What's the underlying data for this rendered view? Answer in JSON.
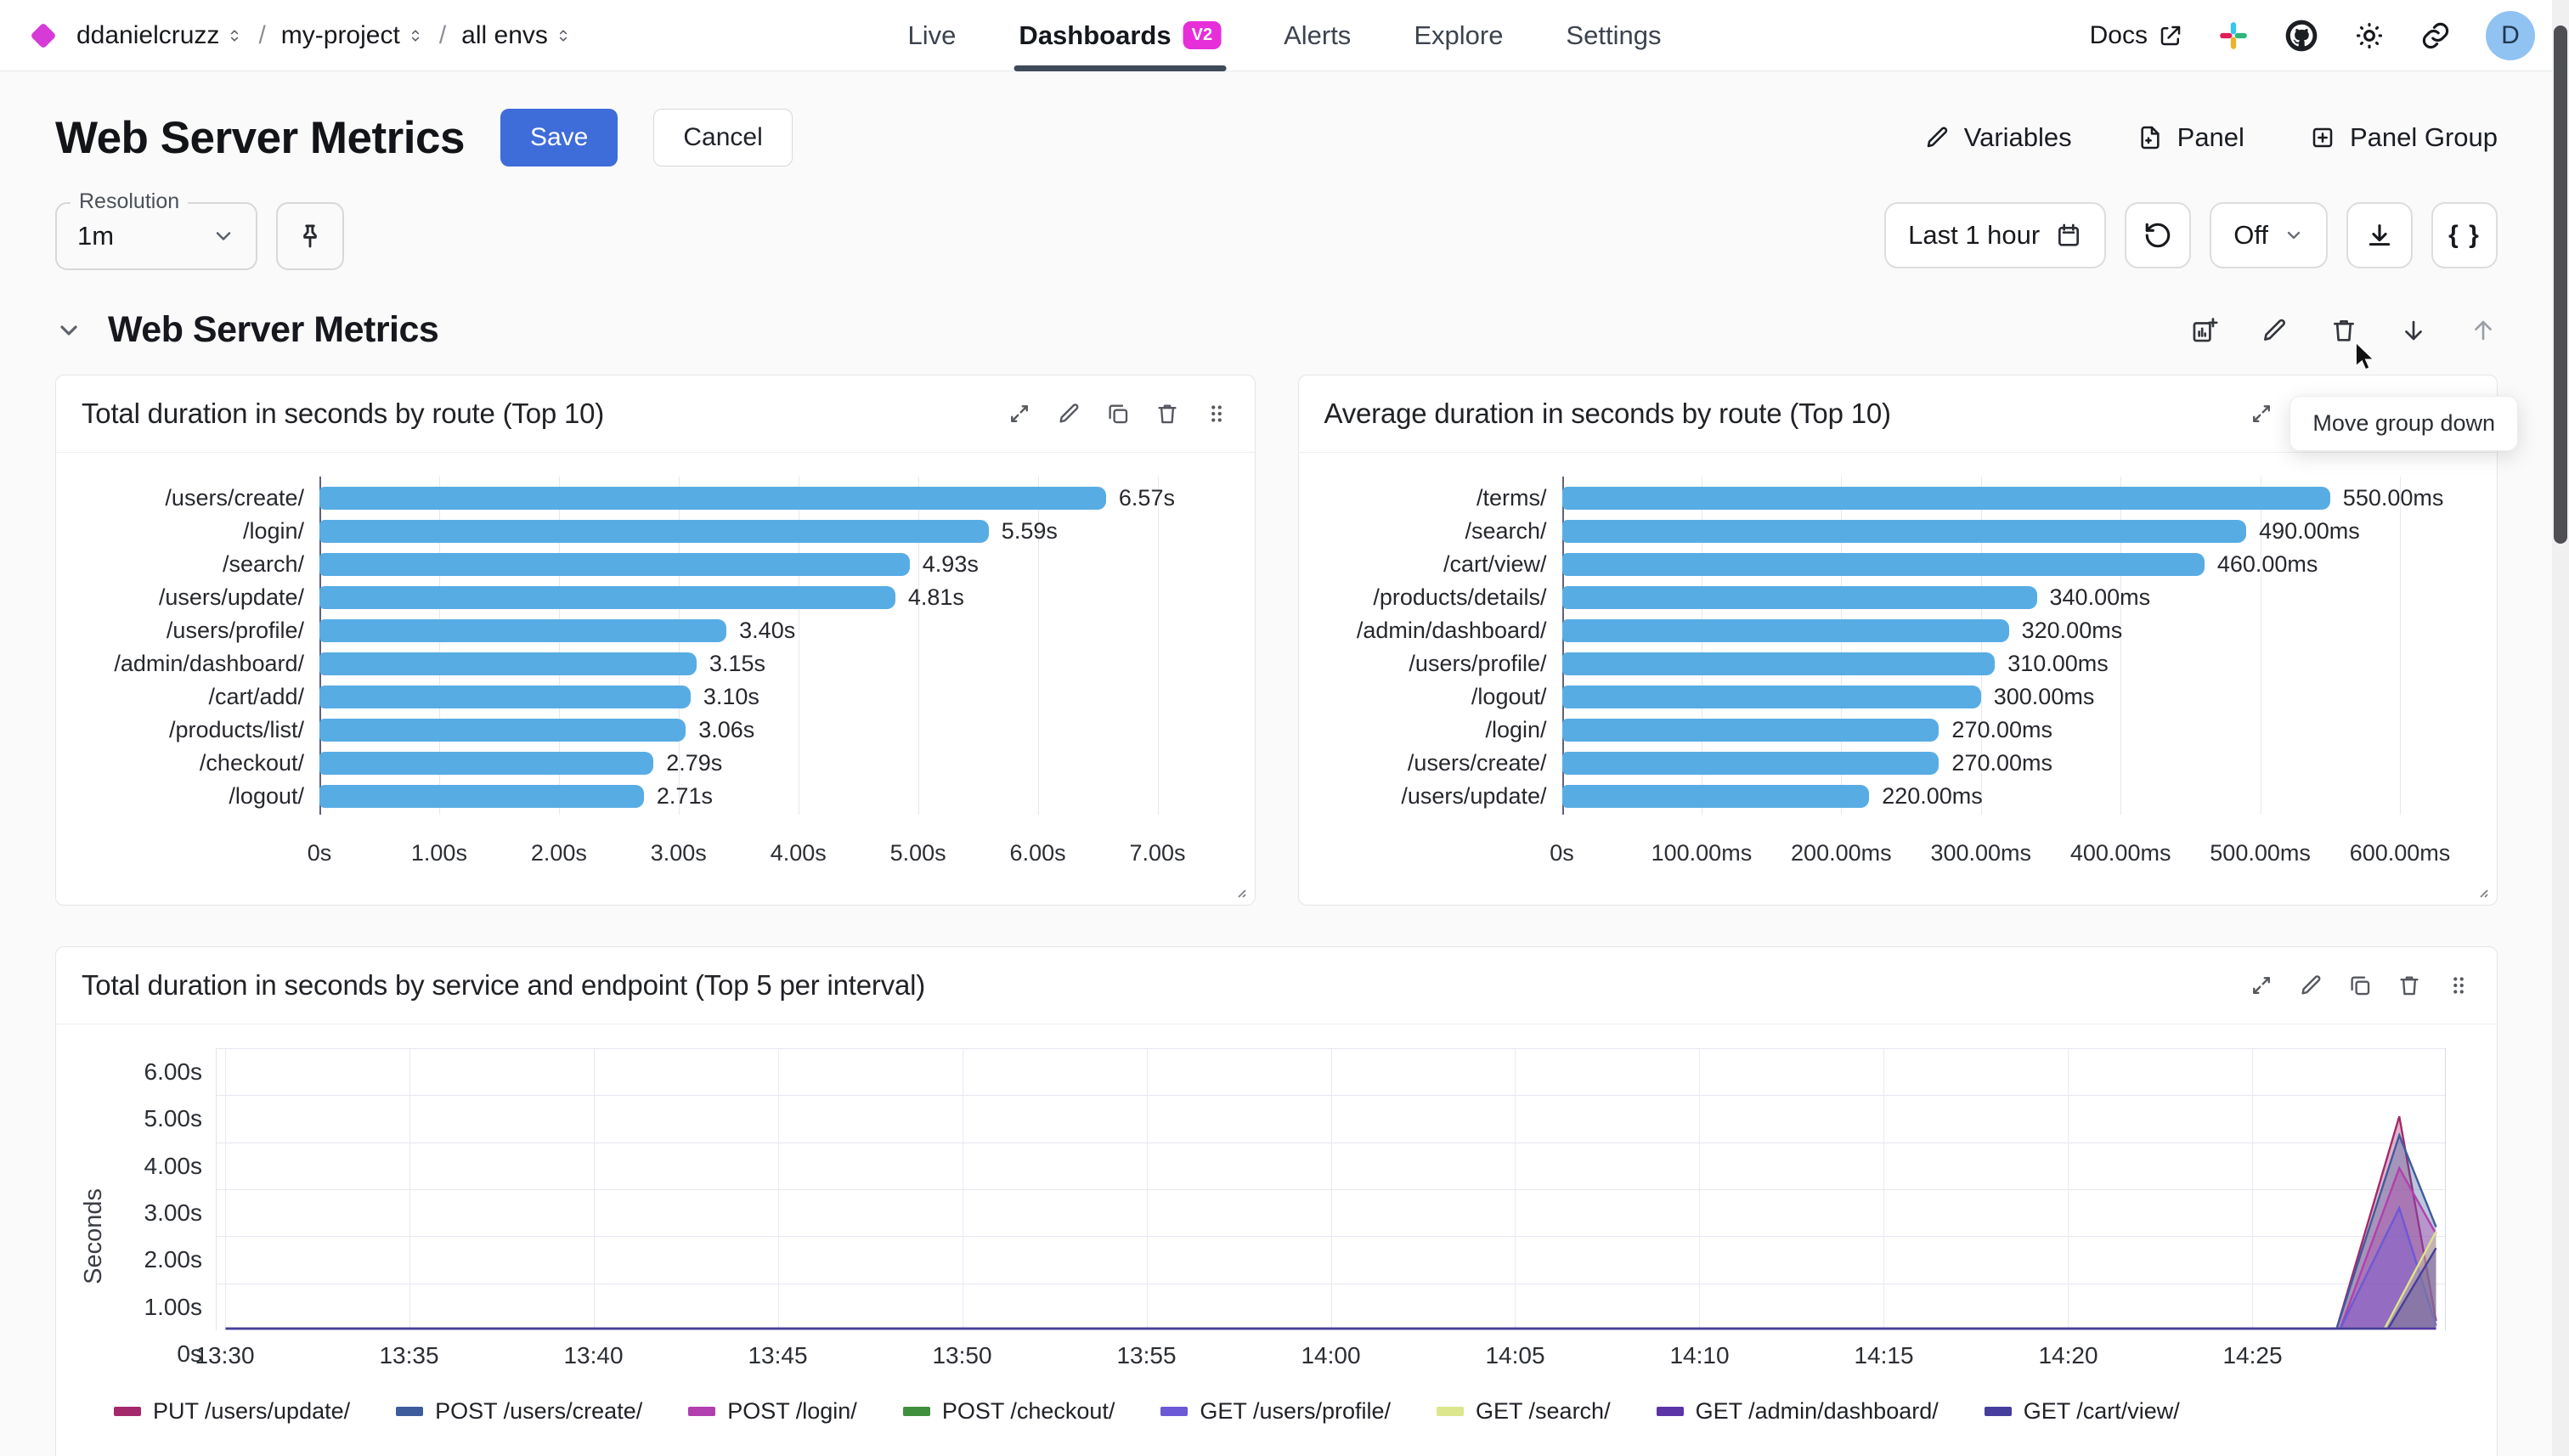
{
  "nav": {
    "breadcrumb": [
      {
        "label": "ddanielcruzz"
      },
      {
        "label": "my-project"
      },
      {
        "label": "all envs"
      }
    ],
    "tabs": [
      {
        "label": "Live",
        "active": false
      },
      {
        "label": "Dashboards",
        "active": true,
        "badge": "V2"
      },
      {
        "label": "Alerts",
        "active": false
      },
      {
        "label": "Explore",
        "active": false
      },
      {
        "label": "Settings",
        "active": false
      }
    ],
    "docs_label": "Docs",
    "avatar_initial": "D"
  },
  "header": {
    "title": "Web Server Metrics",
    "save_label": "Save",
    "cancel_label": "Cancel",
    "actions": [
      {
        "label": "Variables",
        "icon": "pencil-icon"
      },
      {
        "label": "Panel",
        "icon": "panel-add-icon"
      },
      {
        "label": "Panel Group",
        "icon": "panel-group-add-icon"
      }
    ]
  },
  "controls": {
    "resolution_label": "Resolution",
    "resolution_value": "1m",
    "time_range": "Last 1 hour",
    "auto_refresh_value": "Off",
    "code_button_label": "{ }"
  },
  "tooltip": {
    "text": "Move group down"
  },
  "group": {
    "title": "Web Server Metrics"
  },
  "icons": {
    "panel_actions": [
      "expand-icon",
      "edit-icon",
      "copy-icon",
      "delete-icon",
      "drag-handle-icon"
    ],
    "group_actions": [
      "add-panel-icon",
      "edit-icon",
      "delete-icon",
      "move-down-icon",
      "move-up-icon"
    ]
  },
  "chart_data": [
    {
      "type": "bar",
      "orientation": "horizontal",
      "title": "Total duration in seconds by route (Top 10)",
      "categories": [
        "/users/create/",
        "/login/",
        "/search/",
        "/users/update/",
        "/users/profile/",
        "/admin/dashboard/",
        "/cart/add/",
        "/products/list/",
        "/checkout/",
        "/logout/"
      ],
      "values": [
        6.57,
        5.59,
        4.93,
        4.81,
        3.4,
        3.15,
        3.1,
        3.06,
        2.79,
        2.71
      ],
      "value_labels": [
        "6.57s",
        "5.59s",
        "4.93s",
        "4.81s",
        "3.40s",
        "3.15s",
        "3.10s",
        "3.06s",
        "2.79s",
        "2.71s"
      ],
      "x_tick_labels": [
        "0s",
        "1.00s",
        "2.00s",
        "3.00s",
        "4.00s",
        "5.00s",
        "6.00s",
        "7.00s"
      ],
      "x_tick_values": [
        0,
        1,
        2,
        3,
        4,
        5,
        6,
        7
      ],
      "x_max": 7,
      "bar_color": "#58ACE4",
      "grid": true
    },
    {
      "type": "bar",
      "orientation": "horizontal",
      "title": "Average duration in seconds by route (Top 10)",
      "categories": [
        "/terms/",
        "/search/",
        "/cart/view/",
        "/products/details/",
        "/admin/dashboard/",
        "/users/profile/",
        "/logout/",
        "/login/",
        "/users/create/",
        "/users/update/"
      ],
      "values": [
        550,
        490,
        460,
        340,
        320,
        310,
        300,
        270,
        270,
        220
      ],
      "value_labels": [
        "550.00ms",
        "490.00ms",
        "460.00ms",
        "340.00ms",
        "320.00ms",
        "310.00ms",
        "300.00ms",
        "270.00ms",
        "270.00ms",
        "220.00ms"
      ],
      "x_tick_labels": [
        "0s",
        "100.00ms",
        "200.00ms",
        "300.00ms",
        "400.00ms",
        "500.00ms",
        "600.00ms"
      ],
      "x_tick_values": [
        0,
        100,
        200,
        300,
        400,
        500,
        600
      ],
      "x_max": 600,
      "bar_color": "#58ACE4",
      "grid": true
    },
    {
      "type": "area",
      "title": "Total duration in seconds by service and endpoint (Top 5 per interval)",
      "ylabel": "Seconds",
      "y_tick_labels": [
        "0s",
        "1.00s",
        "2.00s",
        "3.00s",
        "4.00s",
        "5.00s",
        "6.00s"
      ],
      "y_tick_values": [
        0,
        1,
        2,
        3,
        4,
        5,
        6
      ],
      "y_max": 6,
      "x_tick_labels": [
        "13:30",
        "13:35",
        "13:40",
        "13:45",
        "13:50",
        "13:55",
        "14:00",
        "14:05",
        "14:10",
        "14:15",
        "14:20",
        "14:25"
      ],
      "x_axis_minutes_range": [
        0,
        60
      ],
      "grid": true,
      "legend_position": "bottom",
      "series": [
        {
          "name": "PUT /users/update/",
          "color": "#A4296B",
          "points_min_sec": [
            [
              0,
              0
            ],
            [
              57.3,
              0
            ],
            [
              59,
              4.55
            ],
            [
              60,
              0.2
            ]
          ]
        },
        {
          "name": "POST /users/create/",
          "color": "#3D5C9C",
          "points_min_sec": [
            [
              0,
              0
            ],
            [
              57.3,
              0
            ],
            [
              59,
              4.15
            ],
            [
              60,
              2.2
            ]
          ]
        },
        {
          "name": "POST /login/",
          "color": "#B23FAD",
          "points_min_sec": [
            [
              0,
              0
            ],
            [
              57.4,
              0
            ],
            [
              59,
              3.45
            ],
            [
              60,
              2.05
            ]
          ]
        },
        {
          "name": "POST /checkout/",
          "color": "#3F8F3F",
          "points_min_sec": [
            [
              0,
              0
            ],
            [
              60,
              0.02
            ]
          ]
        },
        {
          "name": "GET /users/profile/",
          "color": "#6C59D6",
          "points_min_sec": [
            [
              0,
              0
            ],
            [
              57.4,
              0
            ],
            [
              59,
              2.6
            ],
            [
              60,
              0.1
            ]
          ]
        },
        {
          "name": "GET /search/",
          "color": "#DCE68C",
          "points_min_sec": [
            [
              0,
              0
            ],
            [
              58.6,
              0
            ],
            [
              60,
              2.1
            ]
          ]
        },
        {
          "name": "GET /admin/dashboard/",
          "color": "#5B35A8",
          "points_min_sec": [
            [
              0,
              0
            ],
            [
              60,
              0.03
            ]
          ]
        },
        {
          "name": "GET /cart/view/",
          "color": "#463E9C",
          "points_min_sec": [
            [
              0,
              0
            ],
            [
              58.7,
              0
            ],
            [
              60,
              1.75
            ]
          ]
        }
      ]
    }
  ]
}
